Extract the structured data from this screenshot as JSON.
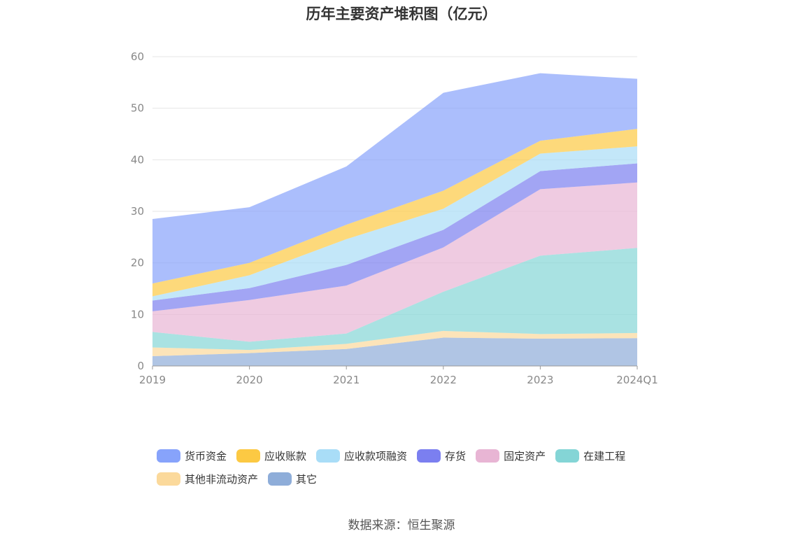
{
  "chart_data": {
    "type": "area",
    "stacked": true,
    "title": "历年主要资产堆积图（亿元）",
    "categories": [
      "2019",
      "2020",
      "2021",
      "2022",
      "2023",
      "2024Q1"
    ],
    "ylim": [
      0,
      60
    ],
    "yticks": [
      0,
      10,
      20,
      30,
      40,
      50,
      60
    ],
    "grid": true,
    "legend_position": "bottom",
    "series": [
      {
        "name": "其它",
        "color": "#8eadd9",
        "values": [
          1.9,
          2.5,
          3.3,
          5.5,
          5.3,
          5.4
        ]
      },
      {
        "name": "其他非流动资产",
        "color": "#fbd99b",
        "values": [
          1.7,
          0.6,
          1.0,
          1.3,
          0.9,
          1.0
        ]
      },
      {
        "name": "在建工程",
        "color": "#84d5d6",
        "values": [
          3.0,
          1.6,
          2.0,
          7.6,
          15.2,
          16.5
        ]
      },
      {
        "name": "固定资产",
        "color": "#e8b5d4",
        "values": [
          4.0,
          8.1,
          9.3,
          8.6,
          12.9,
          12.7
        ]
      },
      {
        "name": "存货",
        "color": "#7b7ff0",
        "values": [
          2.1,
          2.3,
          4.0,
          3.4,
          3.5,
          3.7
        ]
      },
      {
        "name": "应收款项融资",
        "color": "#a9ddf7",
        "values": [
          0.8,
          2.5,
          5.0,
          4.1,
          3.4,
          3.3
        ]
      },
      {
        "name": "应收账款",
        "color": "#fcc943",
        "values": [
          2.5,
          2.4,
          2.8,
          3.5,
          2.5,
          3.4
        ]
      },
      {
        "name": "货币资金",
        "color": "#87a3fb",
        "values": [
          12.5,
          10.8,
          11.3,
          19.0,
          13.1,
          9.7
        ]
      }
    ]
  },
  "legend": {
    "rows": [
      [
        {
          "label": "货币资金",
          "color": "#87a3fb"
        },
        {
          "label": "应收账款",
          "color": "#fcc943"
        },
        {
          "label": "应收款项融资",
          "color": "#a9ddf7"
        },
        {
          "label": "存货",
          "color": "#7b7ff0"
        },
        {
          "label": "固定资产",
          "color": "#e8b5d4"
        },
        {
          "label": "在建工程",
          "color": "#84d5d6"
        }
      ],
      [
        {
          "label": "其他非流动资产",
          "color": "#fbd99b"
        },
        {
          "label": "其它",
          "color": "#8eadd9"
        }
      ]
    ]
  },
  "source": "数据来源：恒生聚源"
}
